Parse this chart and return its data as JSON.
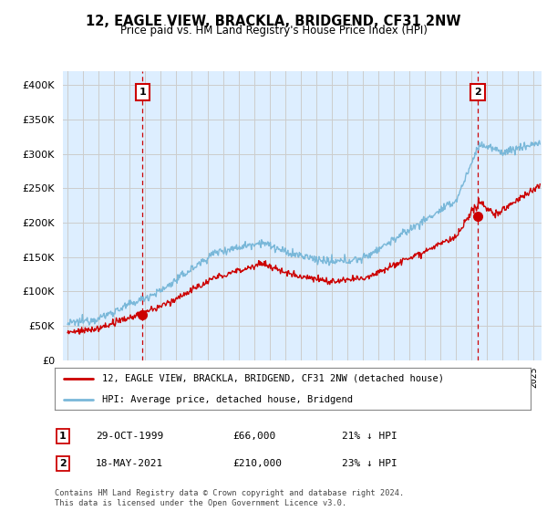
{
  "title": "12, EAGLE VIEW, BRACKLA, BRIDGEND, CF31 2NW",
  "subtitle": "Price paid vs. HM Land Registry's House Price Index (HPI)",
  "ylim": [
    0,
    420000
  ],
  "xlim_start": 1994.7,
  "xlim_end": 2025.5,
  "hpi_color": "#7ab8d9",
  "price_color": "#cc0000",
  "bg_fill_color": "#ddeeff",
  "sale1_price": 66000,
  "sale1_x": 1999.83,
  "sale2_price": 210000,
  "sale2_x": 2021.38,
  "legend_label1": "12, EAGLE VIEW, BRACKLA, BRIDGEND, CF31 2NW (detached house)",
  "legend_label2": "HPI: Average price, detached house, Bridgend",
  "annotation1": "1",
  "annotation2": "2",
  "sale1_date": "29-OCT-1999",
  "sale1_str": "£66,000",
  "sale1_pct": "21% ↓ HPI",
  "sale2_date": "18-MAY-2021",
  "sale2_str": "£210,000",
  "sale2_pct": "23% ↓ HPI",
  "footnote": "Contains HM Land Registry data © Crown copyright and database right 2024.\nThis data is licensed under the Open Government Licence v3.0.",
  "background_color": "#ffffff",
  "grid_color": "#cccccc"
}
